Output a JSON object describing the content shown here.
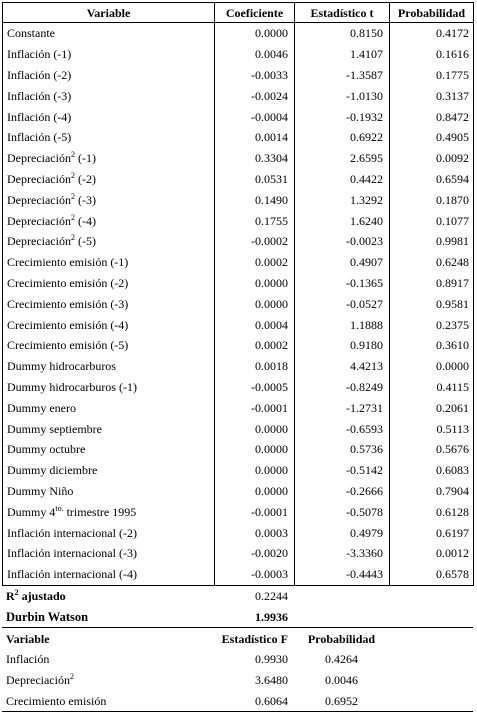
{
  "main_table": {
    "headers": {
      "variable": "Variable",
      "coeficiente": "Coeficiente",
      "estadistico_t": "Estadístico t",
      "probabilidad": "Probabilidad"
    },
    "rows": [
      {
        "name": "Constante",
        "sup": "",
        "suffix": "",
        "coef": "0.0000",
        "t": "0.8150",
        "p": "0.4172"
      },
      {
        "name": "Inflación (-1)",
        "sup": "",
        "suffix": "",
        "coef": "0.0046",
        "t": "1.4107",
        "p": "0.1616"
      },
      {
        "name": "Inflación (-2)",
        "sup": "",
        "suffix": "",
        "coef": "-0.0033",
        "t": "-1.3587",
        "p": "0.1775"
      },
      {
        "name": "Inflación (-3)",
        "sup": "",
        "suffix": "",
        "coef": "-0.0024",
        "t": "-1.0130",
        "p": "0.3137"
      },
      {
        "name": "Inflación (-4)",
        "sup": "",
        "suffix": "",
        "coef": "-0.0004",
        "t": "-0.1932",
        "p": "0.8472"
      },
      {
        "name": "Inflación (-5)",
        "sup": "",
        "suffix": "",
        "coef": "0.0014",
        "t": "0.6922",
        "p": "0.4905"
      },
      {
        "name": "Depreciación",
        "sup": "2",
        "suffix": " (-1)",
        "coef": "0.3304",
        "t": "2.6595",
        "p": "0.0092"
      },
      {
        "name": "Depreciación",
        "sup": "2",
        "suffix": " (-2)",
        "coef": "0.0531",
        "t": "0.4422",
        "p": "0.6594"
      },
      {
        "name": "Depreciación",
        "sup": "2",
        "suffix": " (-3)",
        "coef": "0.1490",
        "t": "1.3292",
        "p": "0.1870"
      },
      {
        "name": "Depreciación",
        "sup": "2",
        "suffix": " (-4)",
        "coef": "0.1755",
        "t": "1.6240",
        "p": "0.1077"
      },
      {
        "name": "Depreciación",
        "sup": "2",
        "suffix": " (-5)",
        "coef": "-0.0002",
        "t": "-0.0023",
        "p": "0.9981"
      },
      {
        "name": "Crecimiento emisión (-1)",
        "sup": "",
        "suffix": "",
        "coef": "0.0002",
        "t": "0.4907",
        "p": "0.6248"
      },
      {
        "name": "Crecimiento emisión (-2)",
        "sup": "",
        "suffix": "",
        "coef": "0.0000",
        "t": "-0.1365",
        "p": "0.8917"
      },
      {
        "name": "Crecimiento emisión (-3)",
        "sup": "",
        "suffix": "",
        "coef": "0.0000",
        "t": "-0.0527",
        "p": "0.9581"
      },
      {
        "name": "Crecimiento emisión (-4)",
        "sup": "",
        "suffix": "",
        "coef": "0.0004",
        "t": "1.1888",
        "p": "0.2375"
      },
      {
        "name": "Crecimiento emisión (-5)",
        "sup": "",
        "suffix": "",
        "coef": "0.0002",
        "t": "0.9180",
        "p": "0.3610"
      },
      {
        "name": "Dummy hidrocarburos",
        "sup": "",
        "suffix": "",
        "coef": "0.0018",
        "t": "4.4213",
        "p": "0.0000"
      },
      {
        "name": "Dummy hidrocarburos (-1)",
        "sup": "",
        "suffix": "",
        "coef": "-0.0005",
        "t": "-0.8249",
        "p": "0.4115"
      },
      {
        "name": "Dummy enero",
        "sup": "",
        "suffix": "",
        "coef": "-0.0001",
        "t": "-1.2731",
        "p": "0.2061"
      },
      {
        "name": "Dummy septiembre",
        "sup": "",
        "suffix": "",
        "coef": "0.0000",
        "t": "-0.6593",
        "p": "0.5113"
      },
      {
        "name": "Dummy octubre",
        "sup": "",
        "suffix": "",
        "coef": "0.0000",
        "t": "0.5736",
        "p": "0.5676"
      },
      {
        "name": "Dummy diciembre",
        "sup": "",
        "suffix": "",
        "coef": "0.0000",
        "t": "-0.5142",
        "p": "0.6083"
      },
      {
        "name": "Dummy Niño",
        "sup": "",
        "suffix": "",
        "coef": "0.0000",
        "t": "-0.2666",
        "p": "0.7904"
      },
      {
        "name": "Dummy 4",
        "sup": "to.",
        "suffix": " trimestre 1995",
        "coef": "-0.0001",
        "t": "-0.5078",
        "p": "0.6128"
      },
      {
        "name": "Inflación internacional (-2)",
        "sup": "",
        "suffix": "",
        "coef": "0.0003",
        "t": "0.4979",
        "p": "0.6197"
      },
      {
        "name": "Inflación internacional (-3)",
        "sup": "",
        "suffix": "",
        "coef": "-0.0020",
        "t": "-3.3360",
        "p": "0.0012"
      },
      {
        "name": "Inflación internacional (-4)",
        "sup": "",
        "suffix": "",
        "coef": "-0.0003",
        "t": "-0.4443",
        "p": "0.6578"
      }
    ]
  },
  "fit_stats": {
    "r2_label_prefix": "R",
    "r2_label_sup": "2",
    "r2_label_suffix": " ajustado",
    "r2_value": "0.2244",
    "dw_label": "Durbin Watson",
    "dw_value": "1.9936"
  },
  "f_table": {
    "headers": {
      "variable": "Variable",
      "estadistico_f": "Estadístico F",
      "probabilidad": "Probabilidad"
    },
    "rows": [
      {
        "name": "Inflación",
        "sup": "",
        "f": "0.9930",
        "p": "0.4264"
      },
      {
        "name": "Depreciación",
        "sup": "2",
        "f": "3.6480",
        "p": "0.0046"
      },
      {
        "name": "Crecimiento emisión",
        "sup": "",
        "f": "0.6064",
        "p": "0.6952"
      }
    ]
  }
}
